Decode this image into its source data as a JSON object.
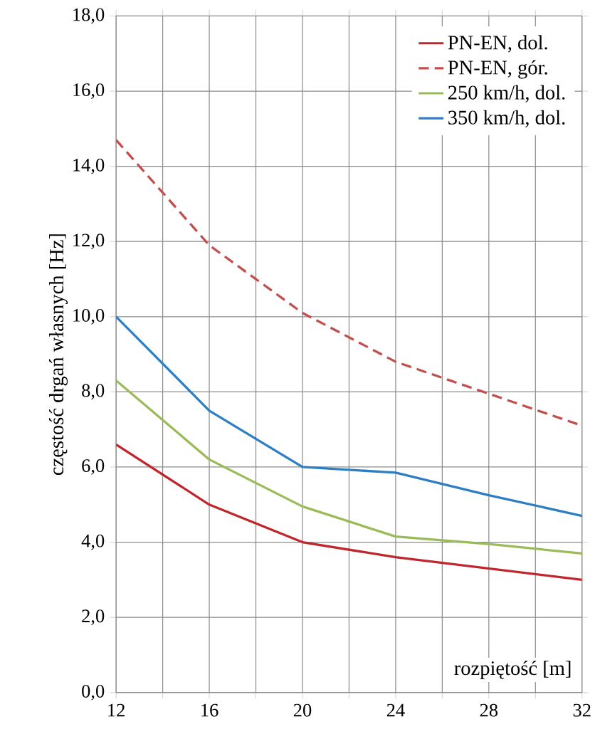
{
  "chart_data": {
    "type": "line",
    "xlabel": "rozpiętość [m]",
    "ylabel": "częstość drgań własnych [Hz]",
    "x": [
      12,
      16,
      20,
      24,
      28,
      32
    ],
    "series": [
      {
        "name": "PN-EN, dol.",
        "color": "#c0272d",
        "values": [
          6.6,
          5.0,
          4.0,
          3.6,
          3.3,
          3.0
        ]
      },
      {
        "name": "PN-EN, gór.",
        "color": "#c0504d",
        "line_style": "dashed",
        "values": [
          14.7,
          11.9,
          10.1,
          8.8,
          7.95,
          7.1
        ]
      },
      {
        "name": "250 km/h, dol.",
        "color": "#9bbb59",
        "values": [
          8.3,
          6.2,
          4.95,
          4.15,
          3.95,
          3.7
        ]
      },
      {
        "name": "350 km/h, dol.",
        "color": "#2e7ec3",
        "values": [
          10.0,
          7.5,
          6.0,
          5.85,
          5.25,
          4.7
        ]
      }
    ],
    "xlim": [
      12,
      32
    ],
    "xticks": [
      12,
      {
        "value": 14,
        "label": null
      },
      16,
      {
        "value": 18,
        "label": null
      },
      20,
      {
        "value": 22,
        "label": null
      },
      24,
      {
        "value": 26,
        "label": null
      },
      28,
      {
        "value": 30,
        "label": null
      },
      32
    ],
    "ylim": [
      0,
      18
    ],
    "yticks": [
      {
        "value": 0,
        "label": "0,0"
      },
      {
        "value": 2,
        "label": "2,0"
      },
      {
        "value": 4,
        "label": "4,0"
      },
      {
        "value": 6,
        "label": "6,0"
      },
      {
        "value": 8,
        "label": "8,0"
      },
      {
        "value": 10,
        "label": "10,0"
      },
      {
        "value": 12,
        "label": "12,0"
      },
      {
        "value": 14,
        "label": "14,0"
      },
      {
        "value": 16,
        "label": "16,0"
      },
      {
        "value": 18,
        "label": "18,0"
      }
    ],
    "grid": true,
    "legend": "top right",
    "line_style": "solid",
    "marker": "none"
  }
}
